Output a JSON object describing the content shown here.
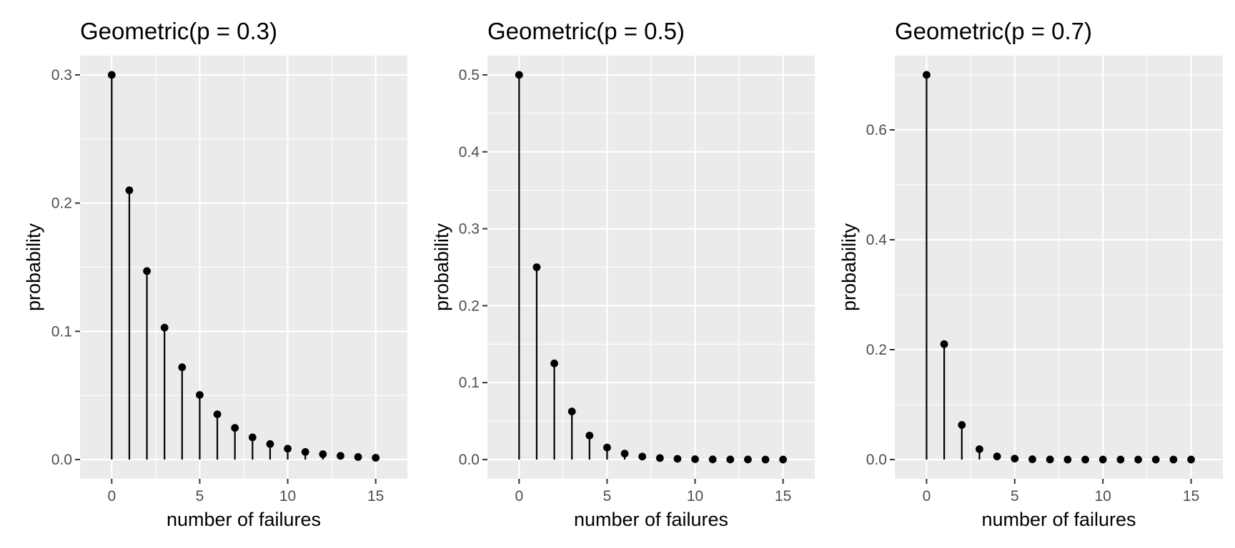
{
  "chart_data": [
    {
      "type": "lollipop",
      "title": "Geometric(p = 0.3)",
      "xlabel": "number of failures",
      "ylabel": "probability",
      "x": [
        0,
        1,
        2,
        3,
        4,
        5,
        6,
        7,
        8,
        9,
        10,
        11,
        12,
        13,
        14,
        15
      ],
      "values": [
        0.3,
        0.21,
        0.147,
        0.1029,
        0.072,
        0.0504,
        0.0353,
        0.0247,
        0.0173,
        0.0121,
        0.0085,
        0.0059,
        0.0042,
        0.0029,
        0.002,
        0.0014
      ],
      "xlim": [
        -1.8,
        16.8
      ],
      "ylim": [
        -0.015,
        0.315
      ],
      "xticks": [
        0,
        5,
        10,
        15
      ],
      "yticks": [
        0.0,
        0.1,
        0.2,
        0.3
      ],
      "ytick_labels": [
        "0.0",
        "0.1",
        "0.2",
        "0.3"
      ],
      "grid": true
    },
    {
      "type": "lollipop",
      "title": "Geometric(p = 0.5)",
      "xlabel": "number of failures",
      "ylabel": "probability",
      "x": [
        0,
        1,
        2,
        3,
        4,
        5,
        6,
        7,
        8,
        9,
        10,
        11,
        12,
        13,
        14,
        15
      ],
      "values": [
        0.5,
        0.25,
        0.125,
        0.0625,
        0.03125,
        0.015625,
        0.0078,
        0.0039,
        0.002,
        0.001,
        0.0005,
        0.0002,
        0.0001,
        0.0001,
        0.0,
        0.0
      ],
      "xlim": [
        -1.8,
        16.8
      ],
      "ylim": [
        -0.025,
        0.525
      ],
      "xticks": [
        0,
        5,
        10,
        15
      ],
      "yticks": [
        0.0,
        0.1,
        0.2,
        0.3,
        0.4,
        0.5
      ],
      "ytick_labels": [
        "0.0",
        "0.1",
        "0.2",
        "0.3",
        "0.4",
        "0.5"
      ],
      "grid": true
    },
    {
      "type": "lollipop",
      "title": "Geometric(p = 0.7)",
      "xlabel": "number of failures",
      "ylabel": "probability",
      "x": [
        0,
        1,
        2,
        3,
        4,
        5,
        6,
        7,
        8,
        9,
        10,
        11,
        12,
        13,
        14,
        15
      ],
      "values": [
        0.7,
        0.21,
        0.063,
        0.0189,
        0.0057,
        0.0017,
        0.0005,
        0.0002,
        0.0,
        0.0,
        0.0,
        0.0,
        0.0,
        0.0,
        0.0,
        0.0
      ],
      "xlim": [
        -1.8,
        16.8
      ],
      "ylim": [
        -0.035,
        0.735
      ],
      "xticks": [
        0,
        5,
        10,
        15
      ],
      "yticks": [
        0.0,
        0.2,
        0.4,
        0.6
      ],
      "ytick_labels": [
        "0.0",
        "0.2",
        "0.4",
        "0.6"
      ],
      "grid": true
    }
  ],
  "colors": {
    "panel_background": "#ebebeb",
    "grid_major": "#ffffff",
    "marks": "#000000",
    "tick_text": "#4d4d4d"
  }
}
